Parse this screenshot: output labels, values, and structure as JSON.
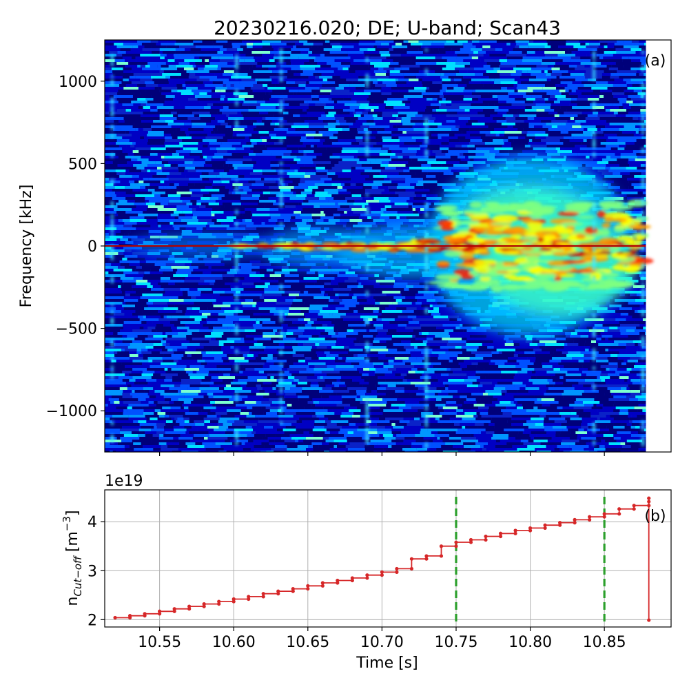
{
  "chart_data": [
    {
      "type": "heatmap",
      "title": "20230216.020; DE; U-band; Scan43",
      "panel_label": "(a)",
      "xlabel": "",
      "ylabel": "Frequency [kHz]",
      "xlim": [
        10.513,
        10.895
      ],
      "data_extent_x": [
        10.513,
        10.878
      ],
      "ylim": [
        -1250,
        1250
      ],
      "yticks": [
        -1000,
        -500,
        0,
        500,
        1000
      ],
      "ytick_labels": [
        "−1000",
        "−500",
        "0",
        "500",
        "1000"
      ],
      "colormap": "jet",
      "grid": false,
      "features": {
        "carrier_line_frequency": 0,
        "broadband_region": {
          "time_range": [
            10.74,
            10.87
          ],
          "frequency_range": [
            -300,
            250
          ]
        }
      }
    },
    {
      "type": "line",
      "panel_label": "(b)",
      "xlabel": "Time [s]",
      "ylabel": "n_Cut−off [m⁻³]",
      "ylabel_parts": {
        "main": "n",
        "sub": "Cut−off",
        "unit": "[m",
        "sup": "−3",
        "close": "]"
      },
      "y_offset_label": "1e19",
      "y_multiplier": 1e+19,
      "xlim": [
        10.513,
        10.895
      ],
      "ylim": [
        1.85,
        4.65
      ],
      "xticks": [
        10.55,
        10.6,
        10.65,
        10.7,
        10.75,
        10.8,
        10.85
      ],
      "xtick_labels": [
        "10.55",
        "10.60",
        "10.65",
        "10.70",
        "10.75",
        "10.80",
        "10.85"
      ],
      "yticks": [
        2,
        3,
        4
      ],
      "ytick_labels": [
        "2",
        "3",
        "4"
      ],
      "grid": true,
      "line_color": "#d62728",
      "vline_color": "#2ca02c",
      "vlines_x": [
        10.75,
        10.85
      ],
      "step_x": [
        10.52,
        10.53,
        10.54,
        10.55,
        10.56,
        10.57,
        10.58,
        10.59,
        10.6,
        10.61,
        10.62,
        10.63,
        10.64,
        10.65,
        10.66,
        10.67,
        10.68,
        10.69,
        10.7,
        10.71,
        10.72,
        10.73,
        10.74,
        10.75,
        10.76,
        10.77,
        10.78,
        10.79,
        10.8,
        10.81,
        10.82,
        10.83,
        10.84,
        10.85,
        10.86,
        10.87,
        10.88
      ],
      "step_y": [
        2.04,
        2.08,
        2.12,
        2.17,
        2.22,
        2.27,
        2.32,
        2.37,
        2.42,
        2.47,
        2.53,
        2.58,
        2.63,
        2.69,
        2.75,
        2.8,
        2.85,
        2.91,
        2.97,
        3.04,
        3.24,
        3.3,
        3.5,
        3.58,
        3.63,
        3.7,
        3.76,
        3.82,
        3.87,
        3.93,
        3.98,
        4.04,
        4.1,
        4.16,
        4.26,
        4.33,
        4.41
      ],
      "final_drop": {
        "x": 10.88,
        "from": 4.48,
        "to": 1.99
      }
    }
  ]
}
